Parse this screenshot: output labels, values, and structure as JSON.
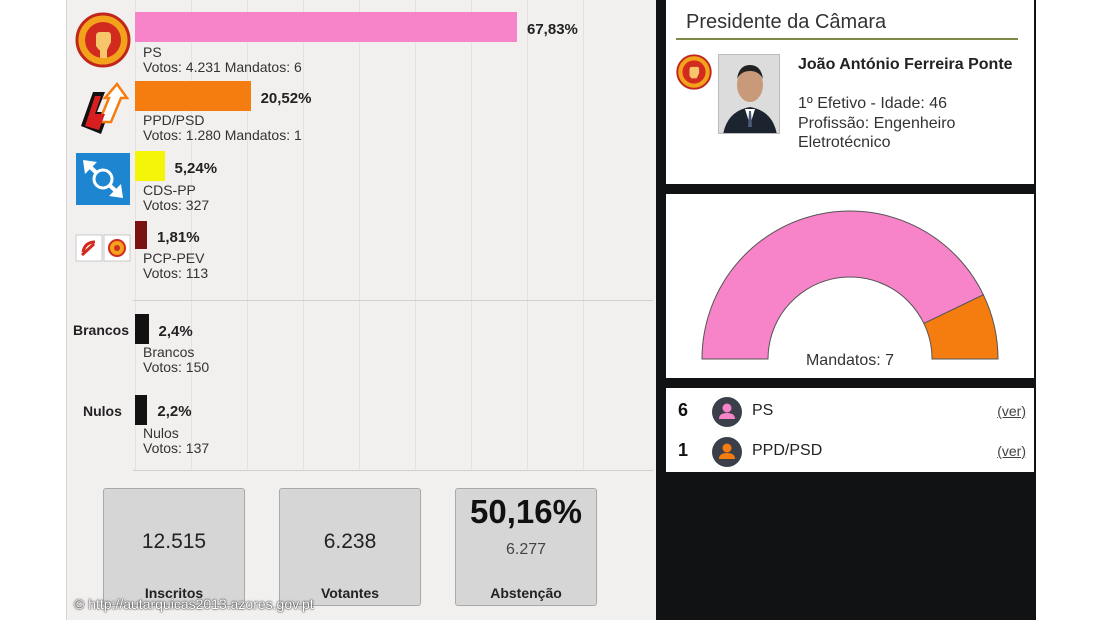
{
  "results": {
    "parties": [
      {
        "name": "PS",
        "votes_line": "Votos: 4.231 Mandatos: 6",
        "pct_label": "67,83%",
        "pct": 67.83,
        "color": "#f783c8",
        "logo": "ps-fist-rose-logo"
      },
      {
        "name": "PPD/PSD",
        "votes_line": "Votos: 1.280 Mandatos: 1",
        "pct_label": "20,52%",
        "pct": 20.52,
        "color": "#f57c0f",
        "logo": "psd-arrows-logo"
      },
      {
        "name": "CDS-PP",
        "votes_line": "Votos: 327",
        "pct_label": "5,24%",
        "pct": 5.24,
        "color": "#f5f50a",
        "logo": "cds-pp-logo"
      },
      {
        "name": "PCP-PEV",
        "votes_line": "Votos: 113",
        "pct_label": "1,81%",
        "pct": 1.81,
        "color": "#7a1212",
        "logo": "cdu-hammer-sickle-logo"
      }
    ],
    "blanks": {
      "side_label": "Brancos",
      "name": "Brancos",
      "votes_line": "Votos: 150",
      "pct_label": "2,4%",
      "pct": 2.4,
      "color": "#111111"
    },
    "nulls": {
      "side_label": "Nulos",
      "name": "Nulos",
      "votes_line": "Votos: 137",
      "pct_label": "2,2%",
      "pct": 2.2,
      "color": "#111111"
    }
  },
  "stats": {
    "registered": {
      "value": "12.515",
      "label": "Inscritos"
    },
    "voters": {
      "value": "6.238",
      "label": "Votantes"
    },
    "abstention": {
      "pct": "50,16%",
      "value": "6.277",
      "label": "Abstenção"
    }
  },
  "watermark": "© http://autarquicas2013.azores.gov.pt",
  "president": {
    "title": "Presidente da Câmara",
    "name": "João António Ferreira Ponte",
    "position": "1º Efetivo - Idade: 46",
    "profession": "Profissão: Engenheiro Eletrotécnico"
  },
  "mandates": {
    "label": "Mandatos: 7",
    "total": 7,
    "segments": [
      {
        "party": "PS",
        "seats": 6,
        "color": "#f783c8"
      },
      {
        "party": "PPD/PSD",
        "seats": 1,
        "color": "#f57c0f"
      }
    ],
    "rows": [
      {
        "count": "6",
        "party": "PS",
        "link": "(ver)",
        "color": "#f783c8"
      },
      {
        "count": "1",
        "party": "PPD/PSD",
        "link": "(ver)",
        "color": "#f57c0f"
      }
    ]
  }
}
